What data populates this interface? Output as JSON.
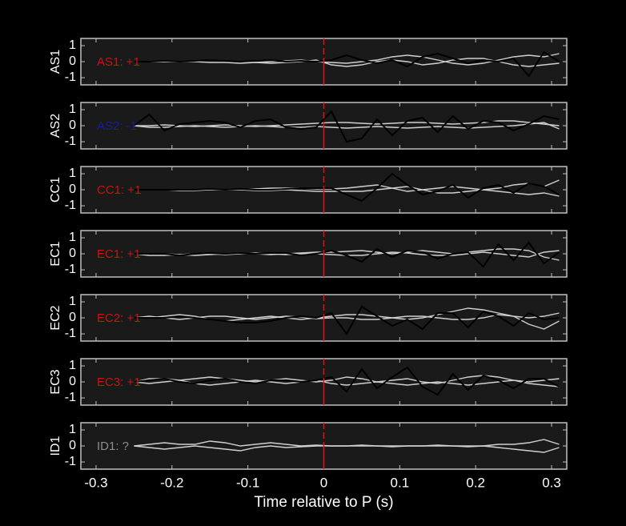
{
  "chart_data": [
    {
      "type": "line",
      "ylabel": "AS1",
      "annotation": {
        "text": "AS1: +1",
        "color": "#c81414"
      },
      "xlim": [
        -0.32,
        0.32
      ],
      "ylim": [
        -1.45,
        1.45
      ],
      "yticks": [
        -1,
        0,
        1
      ],
      "vline": {
        "value": 0,
        "color": "#e01010"
      },
      "x": [
        -0.25,
        -0.23,
        -0.21,
        -0.19,
        -0.17,
        -0.15,
        -0.13,
        -0.11,
        -0.09,
        -0.07,
        -0.05,
        -0.03,
        -0.01,
        0.01,
        0.03,
        0.05,
        0.07,
        0.09,
        0.11,
        0.13,
        0.15,
        0.17,
        0.19,
        0.21,
        0.23,
        0.25,
        0.27,
        0.29,
        0.31
      ],
      "series": [
        {
          "color": "#d0d0d0",
          "values": [
            0,
            0,
            0,
            0,
            0,
            -0.05,
            -0.05,
            -0.1,
            -0.05,
            0,
            0.05,
            0.1,
            0,
            -0.05,
            -0.1,
            0,
            0.1,
            0.3,
            0.4,
            0.3,
            0.1,
            -0.1,
            -0.2,
            -0.1,
            0.1,
            0.3,
            0.4,
            0.3,
            0.5
          ]
        },
        {
          "color": "#d0d0d0",
          "values": [
            0,
            0,
            0,
            0,
            0.05,
            0.1,
            0.05,
            0,
            -0.05,
            -0.1,
            -0.05,
            0,
            0.1,
            -0.2,
            -0.3,
            -0.2,
            0,
            0.1,
            0,
            -0.2,
            -0.1,
            0.1,
            0.2,
            0.2,
            0,
            -0.2,
            -0.3,
            -0.2,
            -0.1
          ]
        },
        {
          "color": "#000000",
          "values": [
            0,
            0,
            0.05,
            0,
            0.05,
            0.1,
            0.05,
            0,
            0.05,
            0.1,
            0,
            0.05,
            0,
            0.1,
            0.4,
            0.1,
            -0.1,
            0.1,
            -0.3,
            0.3,
            0.5,
            0.2,
            -0.1,
            0.1,
            0,
            0.2,
            -0.9,
            0.6,
            0
          ]
        }
      ]
    },
    {
      "type": "line",
      "ylabel": "AS2",
      "annotation": {
        "text": "AS2: -1",
        "color": "#1c1ca0"
      },
      "xlim": [
        -0.32,
        0.32
      ],
      "ylim": [
        -1.45,
        1.45
      ],
      "yticks": [
        -1,
        0,
        1
      ],
      "vline": {
        "value": 0,
        "color": "#e01010"
      },
      "x": [
        -0.25,
        -0.23,
        -0.21,
        -0.19,
        -0.17,
        -0.15,
        -0.13,
        -0.11,
        -0.09,
        -0.07,
        -0.05,
        -0.03,
        -0.01,
        0.01,
        0.03,
        0.05,
        0.07,
        0.09,
        0.11,
        0.13,
        0.15,
        0.17,
        0.19,
        0.21,
        0.23,
        0.25,
        0.27,
        0.29,
        0.31
      ],
      "series": [
        {
          "color": "#d0d0d0",
          "values": [
            0,
            0,
            0.05,
            0,
            -0.05,
            0,
            0.05,
            0,
            -0.05,
            0,
            0.05,
            0.1,
            0.15,
            0.2,
            0.2,
            0.15,
            0.1,
            0.15,
            0.2,
            0.2,
            0.15,
            0.1,
            0.15,
            0.2,
            0.3,
            0.3,
            0.2,
            0.1,
            0
          ]
        },
        {
          "color": "#d0d0d0",
          "values": [
            0,
            -0.1,
            -0.1,
            -0.05,
            0,
            -0.05,
            -0.1,
            -0.05,
            0,
            -0.05,
            -0.1,
            -0.1,
            -0.05,
            -0.1,
            -0.15,
            -0.1,
            -0.05,
            -0.1,
            -0.15,
            -0.1,
            -0.05,
            -0.1,
            -0.15,
            -0.1,
            -0.05,
            0,
            0.1,
            0.2,
            -0.2
          ]
        },
        {
          "color": "#000000",
          "values": [
            0,
            0.7,
            -0.3,
            0.1,
            0.2,
            0.3,
            0.2,
            -0.1,
            0.3,
            0.4,
            -0.1,
            -0.2,
            -0.1,
            0.9,
            -1.0,
            -0.8,
            0.4,
            -0.6,
            0.3,
            0.5,
            -0.4,
            0.6,
            -0.2,
            0.3,
            0.2,
            -0.3,
            0.1,
            0.6,
            0.4
          ]
        }
      ]
    },
    {
      "type": "line",
      "ylabel": "CC1",
      "annotation": {
        "text": "CC1: +1",
        "color": "#c81414"
      },
      "xlim": [
        -0.32,
        0.32
      ],
      "ylim": [
        -1.45,
        1.45
      ],
      "yticks": [
        -1,
        0,
        1
      ],
      "vline": {
        "value": 0,
        "color": "#e01010"
      },
      "x": [
        -0.25,
        -0.23,
        -0.21,
        -0.19,
        -0.17,
        -0.15,
        -0.13,
        -0.11,
        -0.09,
        -0.07,
        -0.05,
        -0.03,
        -0.01,
        0.01,
        0.03,
        0.05,
        0.07,
        0.09,
        0.11,
        0.13,
        0.15,
        0.17,
        0.19,
        0.21,
        0.23,
        0.25,
        0.27,
        0.29,
        0.31
      ],
      "series": [
        {
          "color": "#d0d0d0",
          "values": [
            0,
            0,
            0,
            0,
            0,
            0,
            0,
            0,
            0.05,
            0.1,
            0.1,
            0.1,
            0.05,
            0.05,
            0.1,
            0.2,
            0.3,
            0.1,
            -0.1,
            0,
            0.1,
            0.2,
            0.1,
            0,
            0.1,
            0.3,
            0.4,
            0.2,
            0.6
          ]
        },
        {
          "color": "#d0d0d0",
          "values": [
            0,
            0,
            0,
            -0.05,
            -0.05,
            0,
            0,
            0,
            -0.05,
            -0.05,
            0,
            -0.05,
            -0.1,
            -0.1,
            -0.1,
            -0.1,
            0,
            0.1,
            0.2,
            0,
            -0.2,
            -0.2,
            -0.1,
            0,
            -0.1,
            -0.2,
            -0.3,
            -0.2,
            -0.4
          ]
        },
        {
          "color": "#000000",
          "values": [
            0,
            0,
            0,
            0,
            0,
            0.05,
            0,
            0.05,
            0,
            0,
            0.05,
            0.1,
            0.1,
            0.1,
            -0.3,
            -0.7,
            0.1,
            1.0,
            0.3,
            -0.3,
            -0.1,
            0.3,
            -0.5,
            0.1,
            0.3,
            -0.2,
            0.4,
            0.2,
            -0.3
          ]
        }
      ]
    },
    {
      "type": "line",
      "ylabel": "EC1",
      "annotation": {
        "text": "EC1: +1",
        "color": "#c81414"
      },
      "xlim": [
        -0.32,
        0.32
      ],
      "ylim": [
        -1.45,
        1.45
      ],
      "yticks": [
        -1,
        0,
        1
      ],
      "vline": {
        "value": 0,
        "color": "#e01010"
      },
      "x": [
        -0.25,
        -0.23,
        -0.21,
        -0.19,
        -0.17,
        -0.15,
        -0.13,
        -0.11,
        -0.09,
        -0.07,
        -0.05,
        -0.03,
        -0.01,
        0.01,
        0.03,
        0.05,
        0.07,
        0.09,
        0.11,
        0.13,
        0.15,
        0.17,
        0.19,
        0.21,
        0.23,
        0.25,
        0.27,
        0.29,
        0.31
      ],
      "series": [
        {
          "color": "#d0d0d0",
          "values": [
            0,
            0,
            0,
            -0.05,
            -0.1,
            -0.05,
            0,
            0.05,
            0,
            -0.05,
            0,
            0.05,
            0.1,
            0.1,
            0.15,
            0.2,
            0.1,
            0,
            0.1,
            0.2,
            0.1,
            0,
            0.1,
            0.2,
            0.3,
            0.3,
            0.2,
            -0.2,
            -0.4
          ]
        },
        {
          "color": "#d0d0d0",
          "values": [
            0,
            -0.1,
            -0.1,
            -0.05,
            0,
            0,
            -0.05,
            0,
            0.05,
            0,
            -0.05,
            0,
            0,
            -0.05,
            -0.1,
            -0.1,
            0,
            0.1,
            0.05,
            -0.05,
            -0.1,
            -0.1,
            0,
            0.1,
            0,
            -0.1,
            -0.2,
            0.1,
            0.2
          ]
        },
        {
          "color": "#000000",
          "values": [
            0,
            0,
            0,
            -0.1,
            0,
            0.05,
            0,
            0.05,
            0,
            0.05,
            0.05,
            -0.1,
            0,
            0.2,
            -0.1,
            -0.5,
            0.3,
            -0.2,
            0.2,
            0.1,
            -0.3,
            0,
            0.1,
            -0.8,
            0.6,
            -0.4,
            0.7,
            -0.6,
            0.1
          ]
        }
      ]
    },
    {
      "type": "line",
      "ylabel": "EC2",
      "annotation": {
        "text": "EC2: +1",
        "color": "#c81414"
      },
      "xlim": [
        -0.32,
        0.32
      ],
      "ylim": [
        -1.45,
        1.45
      ],
      "yticks": [
        -1,
        0,
        1
      ],
      "vline": {
        "value": 0,
        "color": "#e01010"
      },
      "x": [
        -0.25,
        -0.23,
        -0.21,
        -0.19,
        -0.17,
        -0.15,
        -0.13,
        -0.11,
        -0.09,
        -0.07,
        -0.05,
        -0.03,
        -0.01,
        0.01,
        0.03,
        0.05,
        0.07,
        0.09,
        0.11,
        0.13,
        0.15,
        0.17,
        0.19,
        0.21,
        0.23,
        0.25,
        0.27,
        0.29,
        0.31
      ],
      "series": [
        {
          "color": "#d0d0d0",
          "values": [
            0,
            0,
            0.1,
            0.2,
            0.1,
            -0.1,
            -0.2,
            -0.1,
            0,
            0.1,
            0,
            -0.1,
            0,
            0.1,
            0.2,
            0.2,
            0.1,
            0,
            -0.1,
            0,
            0.2,
            0.4,
            0.6,
            0.5,
            0.3,
            0.1,
            0,
            0.1,
            0.3
          ]
        },
        {
          "color": "#d0d0d0",
          "values": [
            0,
            0.1,
            0,
            -0.1,
            0,
            0.1,
            0.1,
            0,
            -0.1,
            0,
            0.1,
            0.05,
            -0.05,
            0,
            0,
            -0.1,
            -0.1,
            0,
            0.1,
            0.1,
            0,
            -0.1,
            -0.1,
            0,
            0.2,
            0.1,
            -0.4,
            -0.7,
            -0.2
          ]
        },
        {
          "color": "#000000",
          "values": [
            0,
            0,
            0,
            0.1,
            0,
            -0.1,
            -0.2,
            -0.3,
            -0.3,
            -0.2,
            0,
            0.1,
            0,
            0.3,
            -1.0,
            0.7,
            0.1,
            -0.5,
            -0.1,
            -0.7,
            0.3,
            0.3,
            -0.6,
            0.4,
            0.1,
            -0.5,
            0.3,
            -0.1,
            0
          ]
        }
      ]
    },
    {
      "type": "line",
      "ylabel": "EC3",
      "annotation": {
        "text": "EC3: +1",
        "color": "#c81414"
      },
      "xlim": [
        -0.32,
        0.32
      ],
      "ylim": [
        -1.45,
        1.45
      ],
      "yticks": [
        -1,
        0,
        1
      ],
      "vline": {
        "value": 0,
        "color": "#e01010"
      },
      "x": [
        -0.25,
        -0.23,
        -0.21,
        -0.19,
        -0.17,
        -0.15,
        -0.13,
        -0.11,
        -0.09,
        -0.07,
        -0.05,
        -0.03,
        -0.01,
        0.01,
        0.03,
        0.05,
        0.07,
        0.09,
        0.11,
        0.13,
        0.15,
        0.17,
        0.19,
        0.21,
        0.23,
        0.25,
        0.27,
        0.29,
        0.31
      ],
      "series": [
        {
          "color": "#d0d0d0",
          "values": [
            0,
            0.2,
            0.2,
            0.1,
            0.2,
            0.3,
            0.2,
            0.1,
            0,
            0.1,
            0.2,
            0.1,
            0,
            0.1,
            0.3,
            0.2,
            0,
            0.1,
            0.2,
            0,
            -0.1,
            0.1,
            0.3,
            0.4,
            0.3,
            0.1,
            0,
            0.1,
            0.2
          ]
        },
        {
          "color": "#d0d0d0",
          "values": [
            0,
            -0.1,
            0,
            0.1,
            -0.1,
            -0.2,
            -0.1,
            0,
            0.1,
            0,
            -0.1,
            0,
            0.1,
            -0.1,
            -0.2,
            -0.1,
            0,
            -0.1,
            -0.2,
            -0.1,
            0,
            -0.1,
            -0.2,
            -0.1,
            0,
            0.1,
            -0.1,
            -0.2,
            -0.3
          ]
        },
        {
          "color": "#000000",
          "values": [
            0,
            0.1,
            0.2,
            0,
            -0.1,
            0.1,
            0.2,
            0,
            -0.1,
            0.1,
            0.1,
            0,
            0.1,
            0.3,
            -0.6,
            0.8,
            -0.4,
            0.3,
            0.9,
            -0.3,
            -0.8,
            0.5,
            -0.5,
            0.4,
            0.1,
            -0.4,
            0.2,
            0.2,
            -0.3
          ]
        }
      ]
    },
    {
      "type": "line",
      "ylabel": "ID1",
      "annotation": {
        "text": "ID1: ?",
        "color": "#8c8c8c"
      },
      "xlim": [
        -0.32,
        0.32
      ],
      "ylim": [
        -1.45,
        1.45
      ],
      "yticks": [
        -1,
        0,
        1
      ],
      "vline": {
        "value": 0,
        "color": "#e01010"
      },
      "xticks": [
        -0.3,
        -0.2,
        -0.1,
        0,
        0.1,
        0.2,
        0.3
      ],
      "xlabel": "Time relative to P (s)",
      "x": [
        -0.25,
        -0.23,
        -0.21,
        -0.19,
        -0.17,
        -0.15,
        -0.13,
        -0.11,
        -0.09,
        -0.07,
        -0.05,
        -0.03,
        -0.01,
        0.01,
        0.03,
        0.05,
        0.07,
        0.09,
        0.11,
        0.13,
        0.15,
        0.17,
        0.19,
        0.21,
        0.23,
        0.25,
        0.27,
        0.29,
        0.31
      ],
      "series": [
        {
          "color": "#d0d0d0",
          "values": [
            0,
            0.1,
            0.2,
            0.1,
            0.1,
            0.3,
            0.2,
            0,
            0.1,
            0.2,
            0.1,
            0,
            0.05,
            0,
            0,
            0,
            0,
            0,
            0,
            0,
            0,
            0,
            0,
            0,
            0.1,
            0.1,
            0.2,
            0.4,
            0.1
          ]
        },
        {
          "color": "#d0d0d0",
          "values": [
            0,
            -0.1,
            -0.2,
            -0.1,
            0,
            -0.1,
            -0.2,
            -0.3,
            -0.1,
            0,
            -0.1,
            -0.05,
            0,
            0,
            0,
            0.05,
            0,
            -0.05,
            0,
            0,
            0.05,
            0,
            -0.05,
            0,
            -0.1,
            -0.2,
            -0.3,
            -0.4,
            -0.1
          ]
        }
      ]
    }
  ]
}
